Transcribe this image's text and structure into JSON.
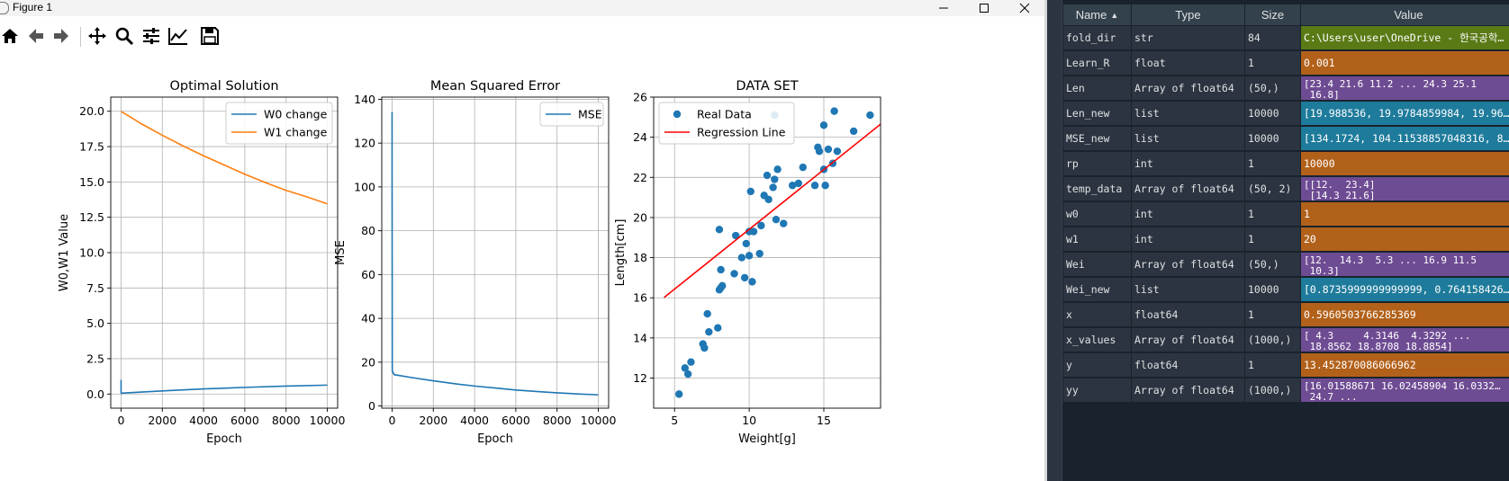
{
  "window": {
    "title": "Figure 1",
    "controls": [
      "minimize",
      "maximize",
      "close"
    ]
  },
  "toolbar": {
    "buttons": [
      "home-icon",
      "back-icon",
      "forward-icon",
      "pan-icon",
      "zoom-icon",
      "configure-subplots-icon",
      "edit-axis-icon",
      "save-icon"
    ]
  },
  "colors": {
    "series_blue": "#1f77b4",
    "series_orange": "#ff7f0e",
    "regression_red": "#ff0000",
    "grid": "#b0b0b0"
  },
  "chart_data": [
    {
      "type": "line",
      "title": "Optimal Solution",
      "xlabel": "Epoch",
      "ylabel": "W0,W1 Value",
      "xlim": [
        -500,
        10500
      ],
      "ylim": [
        -1,
        21
      ],
      "xticks": [
        0,
        2000,
        4000,
        6000,
        8000,
        10000
      ],
      "xtick_labels": [
        "0",
        "2000",
        "4000",
        "6000",
        "8000",
        "10000"
      ],
      "yticks": [
        0,
        2.5,
        5,
        7.5,
        10,
        12.5,
        15,
        17.5,
        20
      ],
      "ytick_labels": [
        "0.0",
        "2.5",
        "5.0",
        "7.5",
        "10.0",
        "12.5",
        "15.0",
        "17.5",
        "20.0"
      ],
      "grid": true,
      "legend_position": "upper right",
      "series": [
        {
          "name": "W0 change",
          "color": "#1f77b4",
          "x": [
            0,
            1,
            10,
            100,
            500,
            1000,
            2000,
            4000,
            6000,
            8000,
            10000
          ],
          "y": [
            1.0,
            0.1,
            0.05,
            0.07,
            0.1,
            0.14,
            0.22,
            0.36,
            0.47,
            0.56,
            0.63
          ]
        },
        {
          "name": "W1 change",
          "color": "#ff7f0e",
          "x": [
            0,
            500,
            1000,
            2000,
            3000,
            4000,
            5000,
            6000,
            7000,
            8000,
            9000,
            10000
          ],
          "y": [
            19.99,
            19.55,
            19.1,
            18.3,
            17.55,
            16.85,
            16.2,
            15.55,
            14.95,
            14.4,
            13.95,
            13.45
          ]
        }
      ]
    },
    {
      "type": "line",
      "title": "Mean Squared Error",
      "xlabel": "Epoch",
      "ylabel": "MSE",
      "xlim": [
        -500,
        10500
      ],
      "ylim": [
        -1,
        141
      ],
      "xticks": [
        0,
        2000,
        4000,
        6000,
        8000,
        10000
      ],
      "xtick_labels": [
        "0",
        "2000",
        "4000",
        "6000",
        "8000",
        "10000"
      ],
      "yticks": [
        0,
        20,
        40,
        60,
        80,
        100,
        120,
        140
      ],
      "ytick_labels": [
        "0",
        "20",
        "40",
        "60",
        "80",
        "100",
        "120",
        "140"
      ],
      "grid": true,
      "legend_position": "upper right",
      "series": [
        {
          "name": "MSE",
          "color": "#1f77b4",
          "x": [
            0,
            1,
            10,
            100,
            1000,
            2000,
            3000,
            4000,
            5000,
            6000,
            7000,
            8000,
            9000,
            10000
          ],
          "y": [
            134.17,
            104.12,
            16,
            14.3,
            12.9,
            11.5,
            10.2,
            9.1,
            8.2,
            7.3,
            6.6,
            6.0,
            5.5,
            5.1
          ]
        }
      ]
    },
    {
      "type": "scatter",
      "title": "DATA SET",
      "xlabel": "Weight[g]",
      "ylabel": "Length[cm]",
      "xlim": [
        3.6,
        18.8
      ],
      "ylim": [
        10.5,
        26
      ],
      "xticks": [
        5,
        10,
        15
      ],
      "xtick_labels": [
        "5",
        "10",
        "15"
      ],
      "yticks": [
        12,
        14,
        16,
        18,
        20,
        22,
        24,
        26
      ],
      "ytick_labels": [
        "12",
        "14",
        "16",
        "18",
        "20",
        "22",
        "24",
        "26"
      ],
      "grid": true,
      "legend_position": "upper left",
      "series": [
        {
          "name": "Real Data",
          "type": "scatter",
          "color": "#1f77b4",
          "x": [
            5.3,
            5.7,
            5.9,
            6.1,
            6.9,
            7.0,
            7.2,
            7.3,
            7.9,
            8.0,
            8.1,
            8.0,
            8.1,
            8.2,
            9.0,
            9.1,
            9.5,
            9.7,
            9.8,
            10.0,
            10.0,
            10.1,
            10.2,
            10.3,
            10.7,
            10.8,
            11.0,
            11.2,
            11.3,
            11.6,
            11.7,
            11.7,
            11.8,
            11.9,
            12.3,
            12.9,
            13.3,
            13.6,
            14.4,
            14.6,
            14.7,
            15.0,
            15.0,
            15.1,
            15.3,
            15.6,
            15.7,
            15.9,
            17.0,
            18.1
          ],
          "y": [
            11.2,
            12.5,
            12.2,
            12.8,
            13.7,
            13.5,
            15.2,
            14.3,
            14.5,
            16.4,
            17.4,
            19.4,
            16.5,
            16.6,
            17.2,
            19.1,
            18.0,
            17.0,
            18.7,
            19.3,
            18.1,
            21.3,
            16.8,
            19.3,
            18.2,
            19.6,
            21.1,
            22.1,
            20.9,
            21.5,
            21.9,
            25.1,
            19.9,
            22.4,
            19.7,
            21.6,
            21.7,
            22.5,
            21.6,
            23.5,
            23.3,
            24.6,
            22.4,
            21.6,
            23.4,
            22.7,
            25.3,
            23.3,
            24.3,
            25.1
          ]
        },
        {
          "name": "Regression Line",
          "type": "line",
          "color": "#ff0000",
          "x": [
            4.3,
            18.8854
          ],
          "y": [
            16.01588671,
            24.7
          ]
        }
      ]
    }
  ],
  "variable_explorer": {
    "columns": [
      "Name",
      "Type",
      "Size",
      "Value"
    ],
    "sort_indicator": "▲",
    "rows": [
      {
        "name": "fold_dir",
        "type": "str",
        "size": "84",
        "value": "C:\\Users\\user\\OneDrive - 한국공학…",
        "color": "#5a7a16"
      },
      {
        "name": "Learn_R",
        "type": "float",
        "size": "1",
        "value": "0.001",
        "color": "#b2611a"
      },
      {
        "name": "Len",
        "type": "Array of float64",
        "size": "(50,)",
        "value": "[23.4 21.6 11.2 ... 24.3 25.1\n 16.8]",
        "color": "#6e4c93"
      },
      {
        "name": "Len_new",
        "type": "list",
        "size": "10000",
        "value": "[19.988536, 19.9784859984, 19.96…",
        "color": "#1e7b9b"
      },
      {
        "name": "MSE_new",
        "type": "list",
        "size": "10000",
        "value": "[134.1724, 104.11538857048316, 8…",
        "color": "#1e7b9b"
      },
      {
        "name": "rp",
        "type": "int",
        "size": "1",
        "value": "10000",
        "color": "#b2611a"
      },
      {
        "name": "temp_data",
        "type": "Array of float64",
        "size": "(50, 2)",
        "value": "[[12.  23.4]\n [14.3 21.6]",
        "color": "#6e4c93"
      },
      {
        "name": "w0",
        "type": "int",
        "size": "1",
        "value": "1",
        "color": "#b2611a"
      },
      {
        "name": "w1",
        "type": "int",
        "size": "1",
        "value": "20",
        "color": "#b2611a"
      },
      {
        "name": "Wei",
        "type": "Array of float64",
        "size": "(50,)",
        "value": "[12.  14.3  5.3 ... 16.9 11.5\n 10.3]",
        "color": "#6e4c93"
      },
      {
        "name": "Wei_new",
        "type": "list",
        "size": "10000",
        "value": "[0.8735999999999999, 0.764158426…",
        "color": "#1e7b9b"
      },
      {
        "name": "x",
        "type": "float64",
        "size": "1",
        "value": "0.5960503766285369",
        "color": "#b2611a"
      },
      {
        "name": "x_values",
        "type": "Array of float64",
        "size": "(1000,)",
        "value": "[ 4.3     4.3146  4.3292 ...\n 18.8562 18.8708 18.8854]",
        "color": "#6e4c93"
      },
      {
        "name": "y",
        "type": "float64",
        "size": "1",
        "value": "13.452870086066962",
        "color": "#b2611a"
      },
      {
        "name": "yy",
        "type": "Array of float64",
        "size": "(1000,)",
        "value": "[16.01588671 16.02458904 16.0332…\n 24.7 ...",
        "color": "#6e4c93"
      }
    ]
  }
}
